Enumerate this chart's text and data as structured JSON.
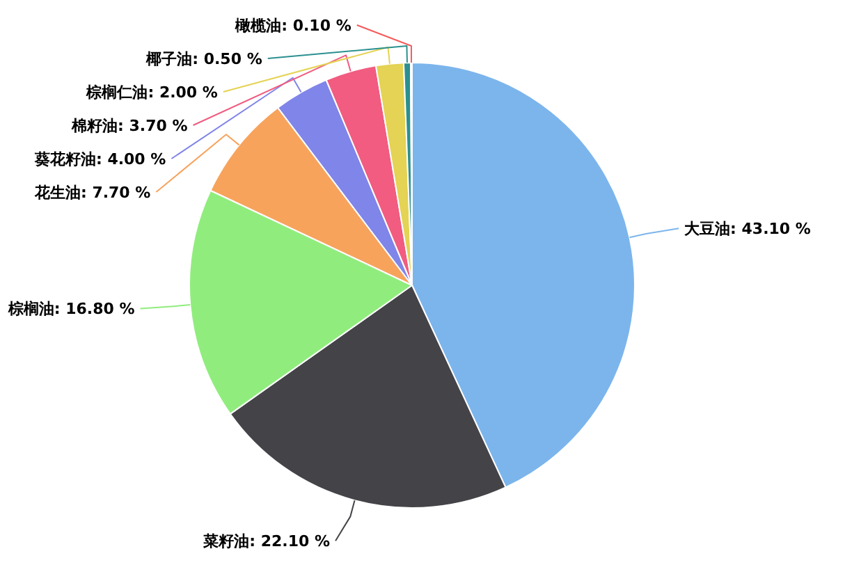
{
  "chart_data": {
    "type": "pie",
    "categories": [
      "大豆油",
      "菜籽油",
      "棕榈油",
      "花生油",
      "葵花籽油",
      "棉籽油",
      "棕榈仁油",
      "椰子油",
      "橄榄油"
    ],
    "values": [
      43.1,
      22.1,
      16.8,
      7.7,
      4.0,
      3.7,
      2.0,
      0.5,
      0.1
    ],
    "value_labels": [
      "43.10 %",
      "22.10 %",
      "16.80 %",
      "7.70 %",
      "4.00 %",
      "3.70 %",
      "2.00 %",
      "0.50 %",
      "0.10 %"
    ],
    "colors": [
      "#7cb5ec",
      "#434348",
      "#90ed7d",
      "#f7a35c",
      "#8085e9",
      "#f15c80",
      "#e4d354",
      "#2b908f",
      "#f45b5b"
    ]
  }
}
